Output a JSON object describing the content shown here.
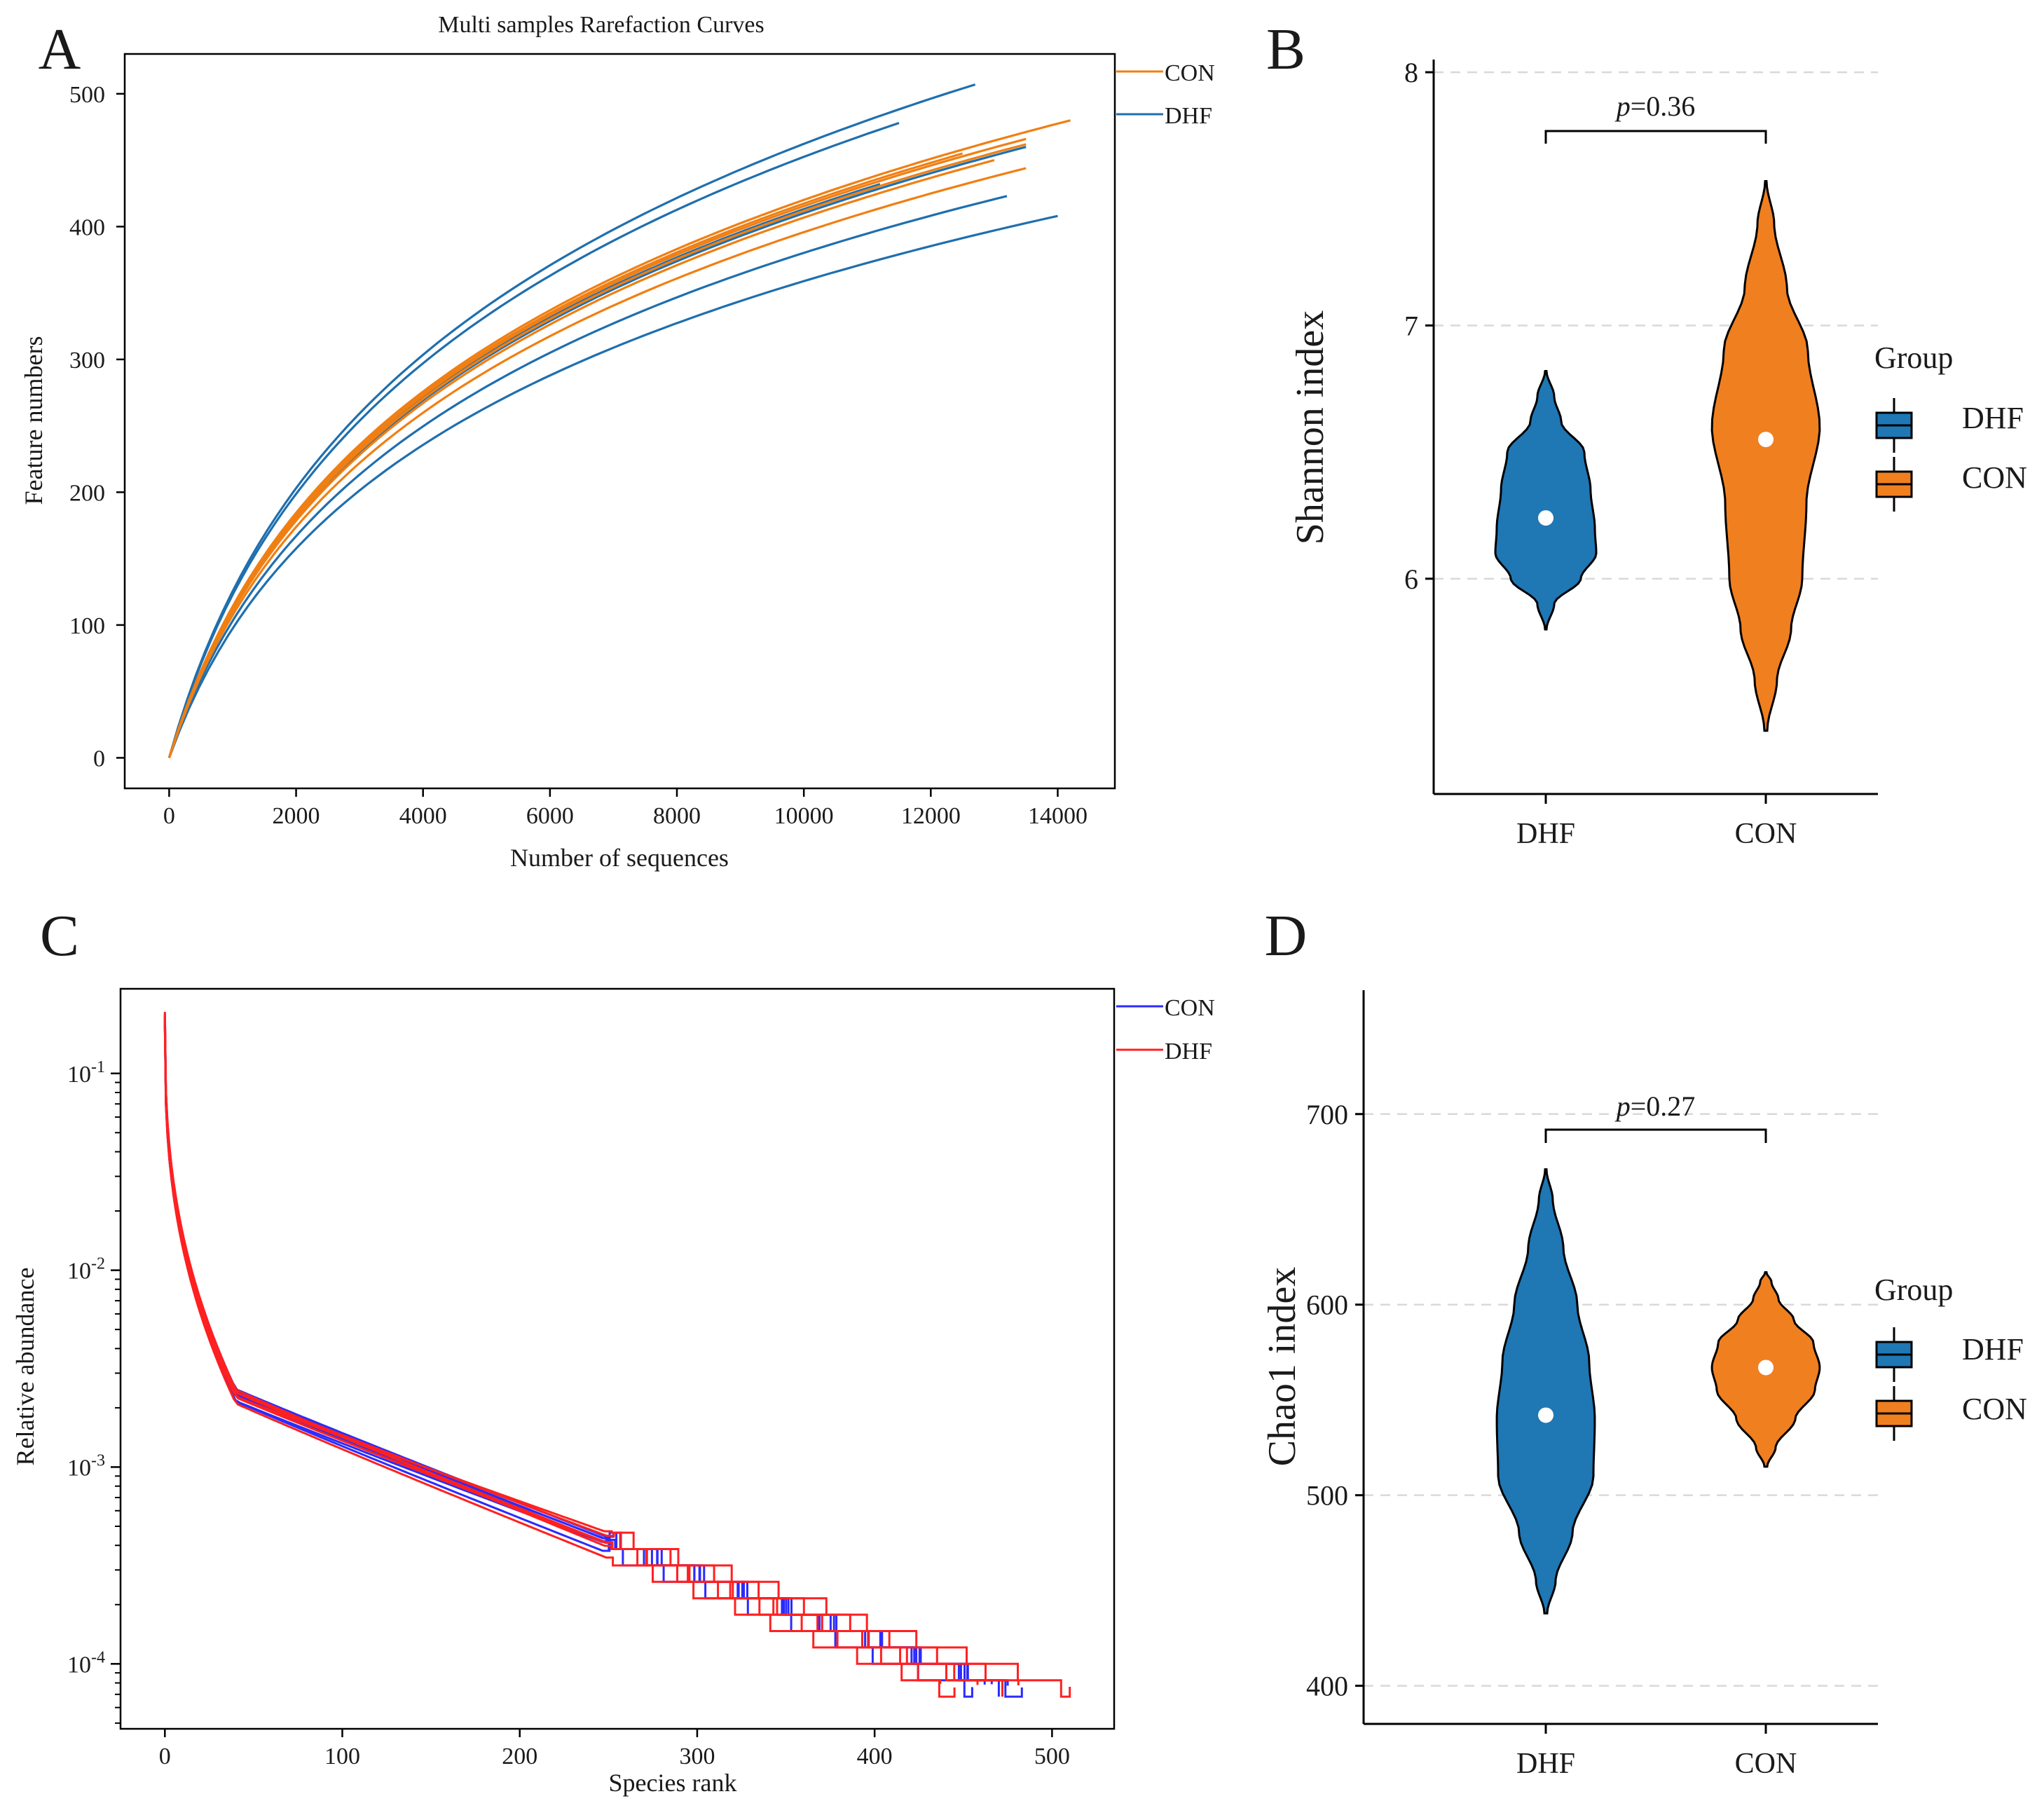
{
  "figure": {
    "panel_labels": [
      "A",
      "B",
      "C",
      "D"
    ]
  },
  "colors": {
    "con_orange": "#f07f13",
    "dhf_blue": "#1f6fae",
    "con_blue_line": "#2b2bff",
    "dhf_red_line": "#ff2020",
    "violin_dhf": "#1f77b4",
    "violin_con": "#f07f20",
    "axis": "#000000",
    "grid": "#d9d9d9"
  },
  "chart_data": [
    {
      "panel": "A",
      "type": "line",
      "title": "Multi samples Rarefaction Curves",
      "xlabel": "Number of sequences",
      "ylabel": "Feature numbers",
      "xlim": [
        -700,
        14900
      ],
      "ylim": [
        -23,
        530
      ],
      "xticks": [
        0,
        2000,
        4000,
        6000,
        8000,
        10000,
        12000,
        14000
      ],
      "yticks": [
        0,
        100,
        200,
        300,
        400,
        500
      ],
      "legend": {
        "position": "outside-top-right",
        "entries": [
          "CON",
          "DHF"
        ]
      },
      "series": [
        {
          "group": "DHF",
          "xmax": 12700,
          "ymax": 507
        },
        {
          "group": "DHF",
          "xmax": 11500,
          "ymax": 478
        },
        {
          "group": "DHF",
          "xmax": 13500,
          "ymax": 460
        },
        {
          "group": "DHF",
          "xmax": 11200,
          "ymax": 432
        },
        {
          "group": "DHF",
          "xmax": 13200,
          "ymax": 423
        },
        {
          "group": "DHF",
          "xmax": 14000,
          "ymax": 408
        },
        {
          "group": "CON",
          "xmax": 14200,
          "ymax": 480
        },
        {
          "group": "CON",
          "xmax": 13500,
          "ymax": 466
        },
        {
          "group": "CON",
          "xmax": 13500,
          "ymax": 462
        },
        {
          "group": "CON",
          "xmax": 12500,
          "ymax": 455
        },
        {
          "group": "CON",
          "xmax": 13000,
          "ymax": 450
        },
        {
          "group": "CON",
          "xmax": 13500,
          "ymax": 444
        }
      ]
    },
    {
      "panel": "B",
      "type": "violin",
      "ylabel": "Shannon index",
      "categories": [
        "DHF",
        "CON"
      ],
      "ylim": [
        5.15,
        8.05
      ],
      "yticks": [
        6,
        7,
        8
      ],
      "medians": [
        6.24,
        6.55
      ],
      "ranges": [
        [
          5.8,
          6.82
        ],
        [
          5.4,
          7.57
        ]
      ],
      "pvalue": "=0.36",
      "legend": {
        "title": "Group",
        "entries": [
          "DHF",
          "CON"
        ]
      }
    },
    {
      "panel": "C",
      "type": "line",
      "xlabel": "Species rank",
      "ylabel": "Relative abundance",
      "xlim": [
        -25,
        535
      ],
      "ylog_range": [
        -4.33,
        -0.57
      ],
      "xticks": [
        0,
        100,
        200,
        300,
        400,
        500
      ],
      "yticks": [
        "10-1",
        "10-2",
        "10-3",
        "10-4"
      ],
      "legend": {
        "position": "outside-top-right",
        "entries": [
          "CON",
          "DHF"
        ]
      },
      "series": [
        {
          "group": "CON",
          "rank_max": 483
        },
        {
          "group": "CON",
          "rank_max": 470
        },
        {
          "group": "CON",
          "rank_max": 462
        },
        {
          "group": "CON",
          "rank_max": 455
        },
        {
          "group": "CON",
          "rank_max": 475
        },
        {
          "group": "CON",
          "rank_max": 466
        },
        {
          "group": "DHF",
          "rank_max": 510
        },
        {
          "group": "DHF",
          "rank_max": 481
        },
        {
          "group": "DHF",
          "rank_max": 437
        },
        {
          "group": "DHF",
          "rank_max": 472
        },
        {
          "group": "DHF",
          "rank_max": 458
        },
        {
          "group": "DHF",
          "rank_max": 445
        }
      ]
    },
    {
      "panel": "D",
      "type": "violin",
      "ylabel": "Chao1 index",
      "categories": [
        "DHF",
        "CON"
      ],
      "ylim": [
        380,
        765
      ],
      "yticks": [
        400,
        500,
        600,
        700
      ],
      "medians": [
        542,
        567
      ],
      "ranges": [
        [
          438,
          671
        ],
        [
          515,
          617
        ]
      ],
      "pvalue": "=0.27",
      "legend": {
        "title": "Group",
        "entries": [
          "DHF",
          "CON"
        ]
      }
    }
  ]
}
